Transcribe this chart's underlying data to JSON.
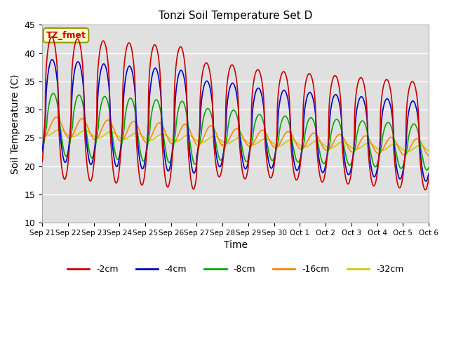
{
  "title": "Tonzi Soil Temperature Set D",
  "xlabel": "Time",
  "ylabel": "Soil Temperature (C)",
  "ylim": [
    10,
    45
  ],
  "xlim": [
    0,
    15
  ],
  "background_color": "#ffffff",
  "plot_bg_color": "#e0e0e0",
  "grid_color": "#ffffff",
  "annotation_text": "TZ_fmet",
  "annotation_bg": "#ffffcc",
  "annotation_border": "#999900",
  "series": {
    "-2cm": {
      "color": "#cc0000",
      "lw": 1.2
    },
    "-4cm": {
      "color": "#0000cc",
      "lw": 1.2
    },
    "-8cm": {
      "color": "#00aa00",
      "lw": 1.2
    },
    "-16cm": {
      "color": "#ff8800",
      "lw": 1.2
    },
    "-32cm": {
      "color": "#cccc00",
      "lw": 1.2
    }
  },
  "xtick_labels": [
    "Sep 21",
    "Sep 22",
    "Sep 23",
    "Sep 24",
    "Sep 25",
    "Sep 26",
    "Sep 27",
    "Sep 28",
    "Sep 29",
    "Sep 30",
    "Oct 1",
    "Oct 2",
    "Oct 3",
    "Oct 4",
    "Oct 5",
    "Oct 6"
  ],
  "xtick_positions": [
    0,
    1,
    2,
    3,
    4,
    5,
    6,
    7,
    8,
    9,
    10,
    11,
    12,
    13,
    14,
    15
  ],
  "ytick_labels": [
    "10",
    "15",
    "20",
    "25",
    "30",
    "35",
    "40",
    "45"
  ],
  "ytick_positions": [
    10,
    15,
    20,
    25,
    30,
    35,
    40,
    45
  ]
}
